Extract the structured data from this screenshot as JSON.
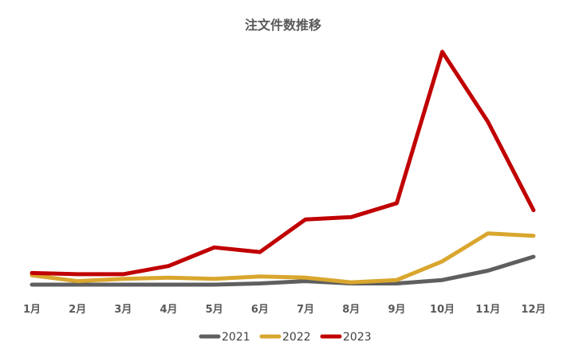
{
  "chart_data": {
    "type": "line",
    "title": "注文件数推移",
    "categories": [
      "1月",
      "2月",
      "3月",
      "4月",
      "5月",
      "6月",
      "7月",
      "8月",
      "9月",
      "10月",
      "11月",
      "12月"
    ],
    "ylim": [
      0,
      100
    ],
    "grid": false,
    "legend_position": "bottom",
    "series": [
      {
        "name": "2021",
        "color": "#5f5f5f",
        "values": [
          0,
          0,
          0,
          0,
          0,
          0.5,
          1.5,
          0.5,
          0.5,
          2,
          6,
          12
        ]
      },
      {
        "name": "2022",
        "color": "#d9a62e",
        "values": [
          4,
          1.5,
          2.5,
          3,
          2.5,
          3.5,
          3,
          1,
          2,
          10,
          22,
          21
        ]
      },
      {
        "name": "2023",
        "color": "#c00000",
        "values": [
          5,
          4.5,
          4.5,
          8,
          16,
          14,
          28,
          29,
          35,
          100,
          70,
          32
        ]
      }
    ]
  }
}
